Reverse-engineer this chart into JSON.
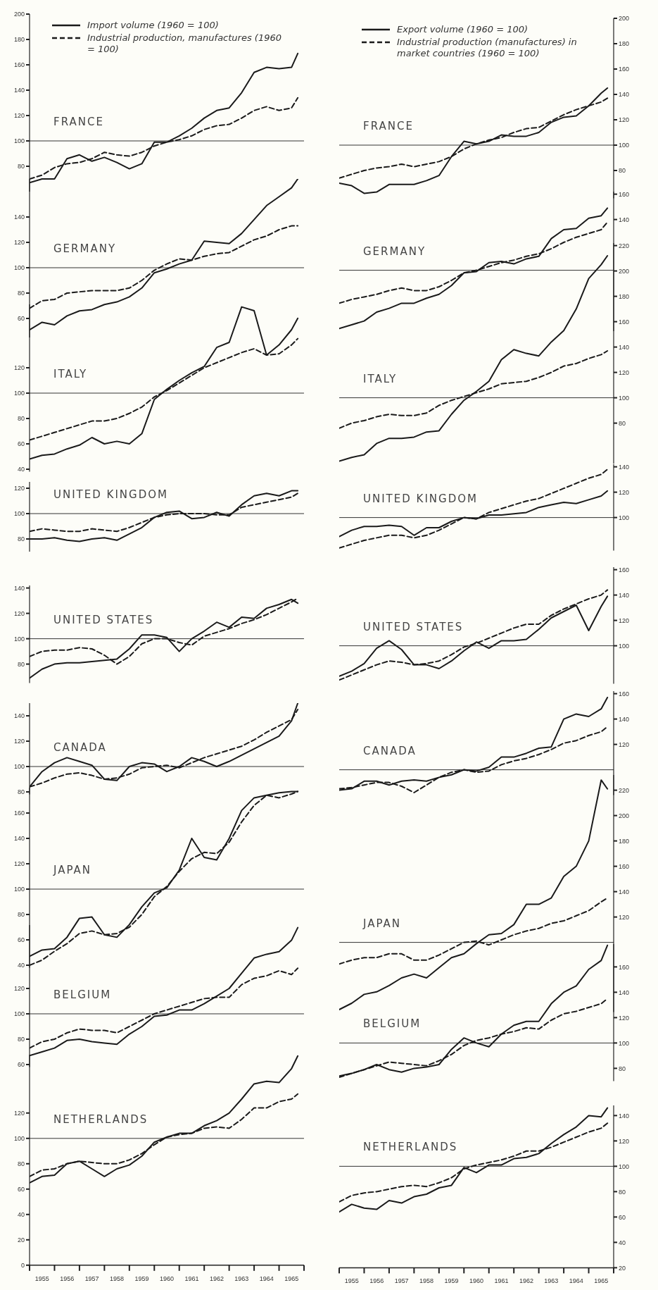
{
  "chart_data": [
    {
      "type": "line",
      "title": "FRANCE",
      "x": [
        1955,
        1955.5,
        1956,
        1956.5,
        1957,
        1957.5,
        1958,
        1958.5,
        1959,
        1959.5,
        1960,
        1960.5,
        1961,
        1961.5,
        1962,
        1962.5,
        1963,
        1963.5,
        1964,
        1964.5,
        1965,
        1965.5,
        1965.75
      ],
      "xlim": [
        1955,
        1966
      ],
      "ylim": [
        60,
        200
      ],
      "yticks": [
        80,
        100,
        120,
        140,
        160,
        180,
        200
      ],
      "tick_labels": "y",
      "legend": "top left",
      "ref_lines": [
        {
          "axis": "y",
          "value": 100
        }
      ],
      "series": [
        {
          "name": "Import volume (1960 = 100)",
          "color": "#1a1a1a",
          "line_style": "solid",
          "values": [
            67,
            70,
            70,
            86,
            89,
            84,
            87,
            83,
            78,
            82,
            99,
            99,
            104,
            110,
            118,
            124,
            126,
            138,
            154,
            158,
            157,
            158,
            169
          ]
        },
        {
          "name": "Industrial production, manufactures (1960 = 100)",
          "color": "#1a1a1a",
          "line_style": "dashed",
          "values": [
            70,
            73,
            79,
            82,
            83,
            86,
            91,
            89,
            88,
            91,
            96,
            99,
            101,
            104,
            109,
            112,
            113,
            118,
            124,
            127,
            124,
            126,
            134
          ]
        }
      ]
    },
    {
      "type": "line",
      "title": "GERMANY",
      "x": [
        1955,
        1955.5,
        1956,
        1956.5,
        1957,
        1957.5,
        1958,
        1958.5,
        1959,
        1959.5,
        1960,
        1960.5,
        1961,
        1961.5,
        1962,
        1962.5,
        1963,
        1963.5,
        1964,
        1964.5,
        1965,
        1965.5,
        1965.75
      ],
      "xlim": [
        1955,
        1966
      ],
      "ylim": [
        45,
        170
      ],
      "yticks": [
        60,
        80,
        100,
        120,
        140
      ],
      "tick_labels": "y",
      "ref_lines": [
        {
          "axis": "y",
          "value": 100
        }
      ],
      "series": [
        {
          "color": "#1a1a1a",
          "line_style": "solid",
          "values": [
            51,
            57,
            55,
            62,
            66,
            67,
            71,
            73,
            77,
            84,
            96,
            99,
            103,
            106,
            121,
            120,
            119,
            127,
            138,
            149,
            156,
            163,
            170
          ]
        },
        {
          "color": "#1a1a1a",
          "line_style": "dashed",
          "values": [
            68,
            74,
            75,
            80,
            81,
            82,
            82,
            82,
            84,
            90,
            98,
            103,
            107,
            106,
            109,
            111,
            112,
            117,
            122,
            125,
            130,
            133,
            133
          ]
        }
      ]
    },
    {
      "type": "line",
      "title": "ITALY",
      "x": [
        1955,
        1955.5,
        1956,
        1956.5,
        1957,
        1957.5,
        1958,
        1958.5,
        1959,
        1959.5,
        1960,
        1960.5,
        1961,
        1961.5,
        1962,
        1962.5,
        1963,
        1963.5,
        1964,
        1964.5,
        1965,
        1965.5,
        1965.75
      ],
      "xlim": [
        1955,
        1966
      ],
      "ylim": [
        38,
        170
      ],
      "yticks": [
        40,
        60,
        80,
        100,
        120
      ],
      "tick_labels": "y",
      "ref_lines": [
        {
          "axis": "y",
          "value": 100
        }
      ],
      "series": [
        {
          "color": "#1a1a1a",
          "line_style": "solid",
          "values": [
            48,
            51,
            52,
            56,
            59,
            65,
            60,
            62,
            60,
            68,
            95,
            103,
            110,
            116,
            121,
            136,
            140,
            168,
            165,
            130,
            138,
            150,
            159
          ]
        },
        {
          "color": "#1a1a1a",
          "line_style": "dashed",
          "values": [
            63,
            66,
            69,
            72,
            75,
            78,
            78,
            80,
            84,
            89,
            97,
            102,
            108,
            114,
            120,
            124,
            128,
            132,
            135,
            130,
            131,
            138,
            143
          ]
        }
      ]
    },
    {
      "type": "line",
      "title": "UNITED KINGDOM",
      "x": [
        1955,
        1955.5,
        1956,
        1956.5,
        1957,
        1957.5,
        1958,
        1958.5,
        1959,
        1959.5,
        1960,
        1960.5,
        1961,
        1961.5,
        1962,
        1962.5,
        1963,
        1963.5,
        1964,
        1964.5,
        1965,
        1965.5,
        1965.75
      ],
      "xlim": [
        1955,
        1966
      ],
      "ylim": [
        70,
        125
      ],
      "yticks": [
        80,
        100,
        120
      ],
      "tick_labels": "y",
      "ref_lines": [
        {
          "axis": "y",
          "value": 100
        }
      ],
      "series": [
        {
          "color": "#1a1a1a",
          "line_style": "solid",
          "values": [
            80,
            80,
            81,
            79,
            78,
            80,
            81,
            79,
            84,
            89,
            97,
            101,
            102,
            96,
            97,
            101,
            98,
            107,
            114,
            116,
            114,
            118,
            118
          ]
        },
        {
          "color": "#1a1a1a",
          "line_style": "dashed",
          "values": [
            86,
            88,
            87,
            86,
            86,
            88,
            87,
            86,
            89,
            93,
            97,
            99,
            100,
            100,
            100,
            99,
            99,
            105,
            107,
            109,
            111,
            113,
            116
          ]
        }
      ]
    },
    {
      "type": "line",
      "title": "UNITED STATES",
      "x": [
        1955,
        1955.5,
        1956,
        1956.5,
        1957,
        1957.5,
        1958,
        1958.5,
        1959,
        1959.5,
        1960,
        1960.5,
        1961,
        1961.5,
        1962,
        1962.5,
        1963,
        1963.5,
        1964,
        1964.5,
        1965,
        1965.5,
        1965.75
      ],
      "xlim": [
        1955,
        1966
      ],
      "ylim": [
        65,
        142
      ],
      "yticks": [
        80,
        100,
        120,
        140
      ],
      "tick_labels": "y",
      "ref_lines": [
        {
          "axis": "y",
          "value": 100
        }
      ],
      "series": [
        {
          "color": "#1a1a1a",
          "line_style": "solid",
          "values": [
            69,
            76,
            80,
            81,
            81,
            82,
            83,
            84,
            92,
            103,
            103,
            101,
            90,
            100,
            106,
            113,
            109,
            117,
            116,
            124,
            127,
            131,
            128
          ]
        },
        {
          "color": "#1a1a1a",
          "line_style": "dashed",
          "values": [
            86,
            90,
            91,
            91,
            93,
            92,
            87,
            80,
            86,
            96,
            100,
            100,
            97,
            95,
            102,
            105,
            108,
            112,
            115,
            119,
            124,
            129,
            132
          ]
        }
      ]
    },
    {
      "type": "line",
      "title": "CANADA",
      "x": [
        1955,
        1955.5,
        1956,
        1956.5,
        1957,
        1957.5,
        1958,
        1958.5,
        1959,
        1959.5,
        1960,
        1960.5,
        1961,
        1961.5,
        1962,
        1962.5,
        1963,
        1963.5,
        1964,
        1964.5,
        1965,
        1965.5,
        1965.75
      ],
      "xlim": [
        1955,
        1966
      ],
      "ylim": [
        78,
        150
      ],
      "yticks": [
        80,
        100,
        120,
        140
      ],
      "tick_labels": "y",
      "ref_lines": [
        {
          "axis": "y",
          "value": 100
        }
      ],
      "series": [
        {
          "color": "#1a1a1a",
          "line_style": "solid",
          "values": [
            84,
            96,
            103,
            107,
            104,
            101,
            90,
            89,
            100,
            103,
            102,
            96,
            100,
            107,
            104,
            100,
            104,
            109,
            114,
            119,
            124,
            136,
            150
          ]
        },
        {
          "color": "#1a1a1a",
          "line_style": "dashed",
          "values": [
            84,
            87,
            91,
            94,
            95,
            93,
            90,
            91,
            94,
            99,
            100,
            101,
            99,
            103,
            107,
            110,
            113,
            116,
            121,
            127,
            132,
            137,
            145
          ]
        }
      ]
    },
    {
      "type": "line",
      "title": "JAPAN",
      "x": [
        1955,
        1955.5,
        1956,
        1956.5,
        1957,
        1957.5,
        1958,
        1958.5,
        1959,
        1959.5,
        1960,
        1960.5,
        1961,
        1961.5,
        1962,
        1962.5,
        1963,
        1963.5,
        1964,
        1964.5,
        1965,
        1965.5,
        1965.75
      ],
      "xlim": [
        1955,
        1966
      ],
      "ylim": [
        38,
        180
      ],
      "yticks": [
        40,
        60,
        80,
        100,
        120,
        140,
        160
      ],
      "tick_labels": "y",
      "ref_lines": [
        {
          "axis": "y",
          "value": 100
        }
      ],
      "series": [
        {
          "color": "#1a1a1a",
          "line_style": "solid",
          "values": [
            47,
            52,
            53,
            62,
            77,
            78,
            64,
            62,
            72,
            86,
            97,
            101,
            115,
            140,
            125,
            123,
            140,
            162,
            172,
            174,
            176,
            177,
            177
          ]
        },
        {
          "color": "#1a1a1a",
          "line_style": "dashed",
          "values": [
            40,
            44,
            51,
            57,
            65,
            67,
            64,
            65,
            70,
            80,
            94,
            102,
            114,
            124,
            129,
            128,
            137,
            153,
            166,
            174,
            172,
            175,
            177
          ]
        }
      ]
    },
    {
      "type": "line",
      "title": "BELGIUM",
      "x": [
        1955,
        1955.5,
        1956,
        1956.5,
        1957,
        1957.5,
        1958,
        1958.5,
        1959,
        1959.5,
        1960,
        1960.5,
        1961,
        1961.5,
        1962,
        1962.5,
        1963,
        1963.5,
        1964,
        1964.5,
        1965,
        1965.5,
        1965.75
      ],
      "xlim": [
        1955,
        1966
      ],
      "ylim": [
        58,
        170
      ],
      "yticks": [
        60,
        80,
        100,
        120
      ],
      "tick_labels": "y",
      "ref_lines": [
        {
          "axis": "y",
          "value": 100
        }
      ],
      "series": [
        {
          "color": "#1a1a1a",
          "line_style": "solid",
          "values": [
            67,
            70,
            73,
            79,
            80,
            78,
            77,
            76,
            84,
            90,
            98,
            99,
            103,
            103,
            108,
            114,
            120,
            132,
            144,
            147,
            149,
            158,
            168
          ]
        },
        {
          "color": "#1a1a1a",
          "line_style": "dashed",
          "values": [
            73,
            78,
            80,
            85,
            88,
            87,
            87,
            85,
            90,
            95,
            100,
            103,
            106,
            109,
            112,
            113,
            113,
            123,
            128,
            130,
            134,
            131,
            136
          ]
        }
      ]
    },
    {
      "type": "line",
      "title": "NETHERLANDS",
      "x": [
        1955,
        1955.5,
        1956,
        1956.5,
        1957,
        1957.5,
        1958,
        1958.5,
        1959,
        1959.5,
        1960,
        1960.5,
        1961,
        1961.5,
        1962,
        1962.5,
        1963,
        1963.5,
        1964,
        1964.5,
        1965,
        1965.5,
        1965.75
      ],
      "xlim": [
        1955,
        1966
      ],
      "xticks": [
        {
          "value": 1955,
          "label": null
        },
        {
          "value": 1955.5,
          "label": "1955"
        },
        {
          "value": 1956,
          "label": null
        },
        {
          "value": 1956.5,
          "label": "1956"
        },
        {
          "value": 1957,
          "label": null
        },
        {
          "value": 1957.5,
          "label": "1957"
        },
        {
          "value": 1958,
          "label": null
        },
        {
          "value": 1958.5,
          "label": "1958"
        },
        {
          "value": 1959,
          "label": null
        },
        {
          "value": 1959.5,
          "label": "1959"
        },
        {
          "value": 1960,
          "label": null
        },
        {
          "value": 1960.5,
          "label": "1960"
        },
        {
          "value": 1961,
          "label": null
        },
        {
          "value": 1961.5,
          "label": "1961"
        },
        {
          "value": 1962,
          "label": null
        },
        {
          "value": 1962.5,
          "label": "1962"
        },
        {
          "value": 1963,
          "label": null
        },
        {
          "value": 1963.5,
          "label": "1963"
        },
        {
          "value": 1964,
          "label": null
        },
        {
          "value": 1964.5,
          "label": "1964"
        },
        {
          "value": 1965,
          "label": null
        },
        {
          "value": 1965.5,
          "label": "1965"
        },
        {
          "value": 1966,
          "label": null
        }
      ],
      "ylim": [
        0,
        166
      ],
      "yticks": [
        0,
        20,
        40,
        60,
        80,
        100,
        120
      ],
      "ref_lines": [
        {
          "axis": "y",
          "value": 100
        }
      ],
      "series": [
        {
          "color": "#1a1a1a",
          "line_style": "solid",
          "values": [
            65,
            70,
            71,
            80,
            82,
            76,
            70,
            76,
            79,
            86,
            97,
            101,
            104,
            104,
            110,
            114,
            120,
            131,
            143,
            145,
            144,
            155,
            165
          ]
        },
        {
          "color": "#1a1a1a",
          "line_style": "dashed",
          "values": [
            70,
            75,
            76,
            80,
            82,
            81,
            80,
            80,
            83,
            88,
            95,
            101,
            103,
            104,
            108,
            109,
            108,
            115,
            124,
            124,
            129,
            131,
            135
          ]
        }
      ]
    },
    {
      "type": "line",
      "title": "FRANCE",
      "x": [
        1955,
        1955.5,
        1956,
        1956.5,
        1957,
        1957.5,
        1958,
        1958.5,
        1959,
        1959.5,
        1960,
        1960.5,
        1961,
        1961.5,
        1962,
        1962.5,
        1963,
        1963.5,
        1964,
        1964.5,
        1965,
        1965.5,
        1965.75
      ],
      "xlim": [
        1955,
        1966
      ],
      "ylim": [
        58,
        200
      ],
      "yticks": [
        80,
        100,
        120,
        140,
        160,
        180,
        200
      ],
      "tick_labels": "y",
      "legend": "top left",
      "ref_lines": [
        {
          "axis": "y",
          "value": 100
        }
      ],
      "series": [
        {
          "name": "Export volume (1960 = 100)",
          "color": "#1a1a1a",
          "line_style": "solid",
          "values": [
            70,
            68,
            62,
            63,
            69,
            69,
            69,
            72,
            76,
            91,
            103,
            101,
            103,
            108,
            107,
            107,
            110,
            118,
            122,
            123,
            131,
            141,
            145
          ]
        },
        {
          "name": "Industrial production (manufactures) in market countries (1960 = 100)",
          "color": "#1a1a1a",
          "line_style": "dashed",
          "values": [
            74,
            77,
            80,
            82,
            83,
            85,
            83,
            85,
            87,
            91,
            97,
            101,
            104,
            106,
            110,
            113,
            114,
            119,
            124,
            128,
            131,
            134,
            137
          ]
        }
      ]
    },
    {
      "type": "line",
      "title": "GERMANY",
      "x": [
        1955,
        1955.5,
        1956,
        1956.5,
        1957,
        1957.5,
        1958,
        1958.5,
        1959,
        1959.5,
        1960,
        1960.5,
        1961,
        1961.5,
        1962,
        1962.5,
        1963,
        1963.5,
        1964,
        1964.5,
        1965,
        1965.5,
        1965.75
      ],
      "xlim": [
        1955,
        1966
      ],
      "ylim": [
        52,
        162
      ],
      "yticks": [
        140,
        160
      ],
      "tick_labels": "y",
      "ref_lines": [
        {
          "axis": "y",
          "value": 100
        }
      ],
      "series": [
        {
          "color": "#1a1a1a",
          "line_style": "solid",
          "values": [
            54,
            57,
            60,
            67,
            70,
            74,
            74,
            78,
            81,
            88,
            98,
            99,
            106,
            107,
            105,
            109,
            111,
            125,
            132,
            133,
            141,
            143,
            149
          ]
        },
        {
          "color": "#1a1a1a",
          "line_style": "dashed",
          "values": [
            74,
            77,
            79,
            81,
            84,
            86,
            84,
            84,
            87,
            92,
            98,
            100,
            103,
            106,
            108,
            111,
            113,
            117,
            122,
            126,
            129,
            132,
            138
          ]
        }
      ]
    },
    {
      "type": "line",
      "title": "ITALY",
      "x": [
        1955,
        1955.5,
        1956,
        1956.5,
        1957,
        1957.5,
        1958,
        1958.5,
        1959,
        1959.5,
        1960,
        1960.5,
        1961,
        1961.5,
        1962,
        1962.5,
        1963,
        1963.5,
        1964,
        1964.5,
        1965,
        1965.5,
        1965.75
      ],
      "xlim": [
        1955,
        1966
      ],
      "ylim": [
        48,
        222
      ],
      "yticks": [
        80,
        100,
        120,
        140,
        160,
        180,
        200,
        220
      ],
      "tick_labels": "y",
      "ref_lines": [
        {
          "axis": "y",
          "value": 100
        }
      ],
      "series": [
        {
          "color": "#1a1a1a",
          "line_style": "solid",
          "values": [
            50,
            53,
            55,
            64,
            68,
            68,
            69,
            73,
            74,
            87,
            98,
            105,
            113,
            130,
            138,
            135,
            133,
            144,
            153,
            170,
            194,
            205,
            212
          ]
        },
        {
          "color": "#1a1a1a",
          "line_style": "dashed",
          "values": [
            76,
            80,
            82,
            85,
            87,
            86,
            86,
            88,
            94,
            98,
            101,
            104,
            107,
            111,
            112,
            113,
            116,
            120,
            125,
            127,
            131,
            134,
            137
          ]
        }
      ]
    },
    {
      "type": "line",
      "title": "UNITED KINGDOM",
      "x": [
        1955,
        1955.5,
        1956,
        1956.5,
        1957,
        1957.5,
        1958,
        1958.5,
        1959,
        1959.5,
        1960,
        1960.5,
        1961,
        1961.5,
        1962,
        1962.5,
        1963,
        1963.5,
        1964,
        1964.5,
        1965,
        1965.5,
        1965.75
      ],
      "xlim": [
        1955,
        1966
      ],
      "ylim": [
        74,
        142
      ],
      "yticks": [
        100,
        120,
        140
      ],
      "tick_labels": "y",
      "ref_lines": [
        {
          "axis": "y",
          "value": 100
        }
      ],
      "series": [
        {
          "color": "#1a1a1a",
          "line_style": "solid",
          "values": [
            85,
            90,
            93,
            93,
            94,
            93,
            86,
            92,
            92,
            97,
            100,
            99,
            102,
            102,
            103,
            104,
            108,
            110,
            112,
            111,
            114,
            117,
            121
          ]
        },
        {
          "color": "#1a1a1a",
          "line_style": "dashed",
          "values": [
            76,
            79,
            82,
            84,
            86,
            86,
            84,
            86,
            90,
            95,
            100,
            99,
            104,
            107,
            110,
            113,
            115,
            119,
            123,
            127,
            131,
            134,
            138
          ]
        }
      ]
    },
    {
      "type": "line",
      "title": "UNITED STATES",
      "x": [
        1955,
        1955.5,
        1956,
        1956.5,
        1957,
        1957.5,
        1958,
        1958.5,
        1959,
        1959.5,
        1960,
        1960.5,
        1961,
        1961.5,
        1962,
        1962.5,
        1963,
        1963.5,
        1964,
        1964.5,
        1965,
        1965.5,
        1965.75
      ],
      "xlim": [
        1955,
        1966
      ],
      "ylim": [
        70,
        162
      ],
      "yticks": [
        100,
        120,
        140,
        160
      ],
      "tick_labels": "y",
      "ref_lines": [
        {
          "axis": "y",
          "value": 100
        }
      ],
      "series": [
        {
          "color": "#1a1a1a",
          "line_style": "solid",
          "values": [
            76,
            80,
            86,
            98,
            104,
            97,
            85,
            85,
            82,
            88,
            96,
            103,
            98,
            104,
            104,
            105,
            113,
            122,
            127,
            132,
            112,
            131,
            139
          ]
        },
        {
          "color": "#1a1a1a",
          "line_style": "dashed",
          "values": [
            73,
            77,
            81,
            85,
            88,
            87,
            85,
            86,
            88,
            93,
            99,
            102,
            106,
            110,
            114,
            117,
            117,
            124,
            129,
            133,
            137,
            140,
            144
          ]
        }
      ]
    },
    {
      "type": "line",
      "title": "CANADA",
      "x": [
        1955,
        1955.5,
        1956,
        1956.5,
        1957,
        1957.5,
        1958,
        1958.5,
        1959,
        1959.5,
        1960,
        1960.5,
        1961,
        1961.5,
        1962,
        1962.5,
        1963,
        1963.5,
        1964,
        1964.5,
        1965,
        1965.5,
        1965.75
      ],
      "xlim": [
        1955,
        1966
      ],
      "ylim": [
        80,
        162
      ],
      "yticks": [
        120,
        140,
        160
      ],
      "tick_labels": "y",
      "ref_lines": [
        {
          "axis": "y",
          "value": 100
        }
      ],
      "series": [
        {
          "color": "#1a1a1a",
          "line_style": "solid",
          "values": [
            84,
            85,
            91,
            91,
            88,
            91,
            92,
            91,
            94,
            96,
            100,
            99,
            102,
            110,
            110,
            113,
            117,
            118,
            140,
            144,
            142,
            148,
            157
          ]
        },
        {
          "color": "#1a1a1a",
          "line_style": "dashed",
          "values": [
            85,
            86,
            88,
            90,
            90,
            87,
            82,
            88,
            94,
            98,
            100,
            98,
            99,
            104,
            107,
            109,
            112,
            116,
            121,
            123,
            127,
            130,
            134
          ]
        }
      ]
    },
    {
      "type": "line",
      "title": "JAPAN",
      "x": [
        1955,
        1955.5,
        1956,
        1956.5,
        1957,
        1957.5,
        1958,
        1958.5,
        1959,
        1959.5,
        1960,
        1960.5,
        1961,
        1961.5,
        1962,
        1962.5,
        1963,
        1963.5,
        1964,
        1964.5,
        1965,
        1965.5,
        1965.75
      ],
      "xlim": [
        1955,
        1966
      ],
      "ylim": [
        45,
        232
      ],
      "yticks": [
        120,
        140,
        160,
        180,
        200,
        220
      ],
      "tick_labels": "y",
      "ref_lines": [
        {
          "axis": "y",
          "value": 100
        }
      ],
      "series": [
        {
          "color": "#1a1a1a",
          "line_style": "solid",
          "values": [
            47,
            52,
            59,
            61,
            66,
            72,
            75,
            72,
            80,
            88,
            91,
            99,
            106,
            107,
            114,
            130,
            130,
            135,
            152,
            160,
            180,
            228,
            221
          ]
        },
        {
          "color": "#1a1a1a",
          "line_style": "dashed",
          "values": [
            83,
            86,
            88,
            88,
            91,
            91,
            86,
            86,
            90,
            95,
            100,
            101,
            98,
            102,
            106,
            109,
            111,
            115,
            117,
            121,
            125,
            132,
            135
          ]
        }
      ]
    },
    {
      "type": "line",
      "title": "BELGIUM",
      "x": [
        1955,
        1955.5,
        1956,
        1956.5,
        1957,
        1957.5,
        1958,
        1958.5,
        1959,
        1959.5,
        1960,
        1960.5,
        1961,
        1961.5,
        1962,
        1962.5,
        1963,
        1963.5,
        1964,
        1964.5,
        1965,
        1965.5,
        1965.75
      ],
      "xlim": [
        1955,
        1966
      ],
      "ylim": [
        70,
        178
      ],
      "yticks": [
        80,
        100,
        120,
        140,
        160
      ],
      "tick_labels": "y",
      "ref_lines": [
        {
          "axis": "y",
          "value": 100
        }
      ],
      "series": [
        {
          "color": "#1a1a1a",
          "line_style": "solid",
          "values": [
            74,
            76,
            79,
            83,
            79,
            77,
            80,
            81,
            83,
            95,
            104,
            100,
            97,
            107,
            114,
            117,
            117,
            131,
            140,
            145,
            158,
            165,
            177
          ]
        },
        {
          "color": "#1a1a1a",
          "line_style": "dashed",
          "values": [
            73,
            76,
            79,
            82,
            85,
            84,
            83,
            82,
            86,
            91,
            98,
            102,
            104,
            107,
            109,
            112,
            111,
            118,
            123,
            125,
            128,
            131,
            135
          ]
        }
      ]
    },
    {
      "type": "line",
      "title": "NETHERLANDS",
      "x": [
        1955,
        1955.5,
        1956,
        1956.5,
        1957,
        1957.5,
        1958,
        1958.5,
        1959,
        1959.5,
        1960,
        1960.5,
        1961,
        1961.5,
        1962,
        1962.5,
        1963,
        1963.5,
        1964,
        1964.5,
        1965,
        1965.5,
        1965.75
      ],
      "xlim": [
        1955,
        1966
      ],
      "xticks": [
        {
          "value": 1955,
          "label": null
        },
        {
          "value": 1955.5,
          "label": "1955"
        },
        {
          "value": 1956,
          "label": null
        },
        {
          "value": 1956.5,
          "label": "1956"
        },
        {
          "value": 1957,
          "label": null
        },
        {
          "value": 1957.5,
          "label": "1957"
        },
        {
          "value": 1958,
          "label": null
        },
        {
          "value": 1958.5,
          "label": "1958"
        },
        {
          "value": 1959,
          "label": null
        },
        {
          "value": 1959.5,
          "label": "1959"
        },
        {
          "value": 1960,
          "label": null
        },
        {
          "value": 1960.5,
          "label": "1960"
        },
        {
          "value": 1961,
          "label": null
        },
        {
          "value": 1961.5,
          "label": "1961"
        },
        {
          "value": 1962,
          "label": null
        },
        {
          "value": 1962.5,
          "label": "1962"
        },
        {
          "value": 1963,
          "label": null
        },
        {
          "value": 1963.5,
          "label": "1963"
        },
        {
          "value": 1964,
          "label": null
        },
        {
          "value": 1964.5,
          "label": "1964"
        },
        {
          "value": 1965,
          "label": null
        },
        {
          "value": 1965.5,
          "label": "1965"
        },
        {
          "value": 1966,
          "label": null
        }
      ],
      "ylim": [
        20,
        148
      ],
      "yticks": [
        20,
        40,
        60,
        80,
        100,
        120,
        140
      ],
      "ref_lines": [
        {
          "axis": "y",
          "value": 100
        }
      ],
      "series": [
        {
          "color": "#1a1a1a",
          "line_style": "solid",
          "values": [
            64,
            70,
            67,
            66,
            73,
            71,
            76,
            78,
            83,
            85,
            99,
            95,
            101,
            101,
            106,
            107,
            110,
            118,
            125,
            131,
            140,
            139,
            146
          ]
        },
        {
          "color": "#1a1a1a",
          "line_style": "dashed",
          "values": [
            72,
            77,
            79,
            80,
            82,
            84,
            85,
            84,
            87,
            91,
            98,
            101,
            103,
            105,
            108,
            112,
            112,
            115,
            119,
            123,
            127,
            130,
            134
          ]
        }
      ]
    }
  ]
}
